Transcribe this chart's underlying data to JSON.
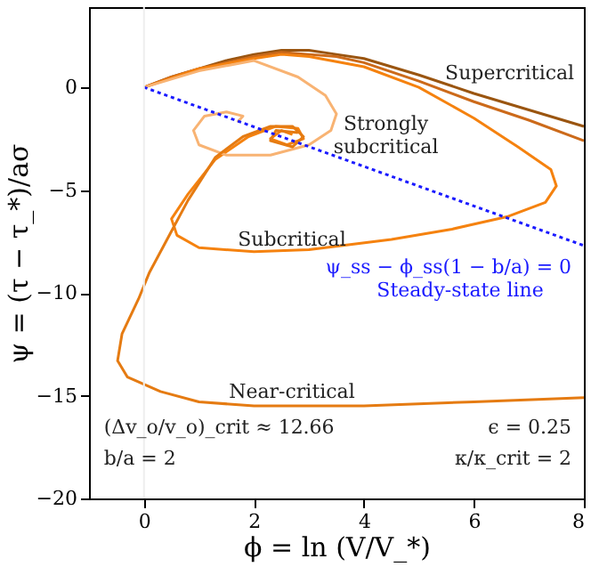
{
  "chart_data": {
    "type": "line",
    "xlabel": "ϕ = ln (V/V_*)",
    "ylabel": "ψ = (τ − τ_*)/aσ",
    "xlim": [
      -1,
      8
    ],
    "ylim": [
      -20,
      3.9
    ],
    "xticks": [
      0,
      2,
      4,
      6,
      8
    ],
    "yticks": [
      0,
      -5,
      -10,
      -15,
      -20
    ],
    "grid": false,
    "series": [
      {
        "color": "#9a5510",
        "x": [
          0,
          0.5,
          1,
          1.5,
          2,
          2.5,
          3,
          3.5,
          4,
          5,
          6,
          7,
          8
        ],
        "values": [
          0,
          0.5,
          0.9,
          1.3,
          1.6,
          1.8,
          1.8,
          1.6,
          1.4,
          0.6,
          -0.3,
          -1.1,
          -1.9
        ]
      },
      {
        "color": "#cc6a1a",
        "x": [
          0,
          0.5,
          1,
          1.5,
          2,
          2.5,
          3,
          3.5,
          4,
          5,
          6,
          7,
          8
        ],
        "values": [
          0,
          0.5,
          0.9,
          1.2,
          1.5,
          1.7,
          1.6,
          1.5,
          1.2,
          0.3,
          -0.7,
          -1.6,
          -2.6
        ]
      },
      {
        "color": "#f5820f",
        "x": [
          0,
          1,
          2,
          2.5,
          3,
          4,
          5,
          6,
          6.8,
          7.4,
          7.5,
          7.3,
          6.6,
          5.6,
          4.5,
          3,
          2,
          1,
          0.6,
          0.5,
          0.8,
          1.3,
          1.9,
          2.4,
          2.8,
          2.9,
          2.6,
          2.3,
          2.5,
          2.7
        ],
        "values": [
          0,
          0.9,
          1.4,
          1.6,
          1.5,
          1.0,
          0.0,
          -1.5,
          -2.9,
          -4.0,
          -4.8,
          -5.6,
          -6.3,
          -6.9,
          -7.4,
          -7.9,
          -8.0,
          -7.8,
          -7.2,
          -6.4,
          -5.2,
          -3.5,
          -2.4,
          -1.9,
          -2.0,
          -2.5,
          -2.8,
          -2.5,
          -2.1,
          -2.3
        ]
      },
      {
        "color": "#f8b373",
        "x": [
          0,
          1,
          2,
          2.8,
          3.3,
          3.5,
          3.4,
          3.0,
          2.3,
          1.5,
          1.0,
          0.9,
          1.1,
          1.5,
          1.8,
          1.7
        ],
        "values": [
          0,
          0.8,
          1.3,
          0.5,
          -0.4,
          -1.3,
          -2.1,
          -2.8,
          -3.3,
          -3.3,
          -2.8,
          -2.1,
          -1.4,
          -1.2,
          -1.4,
          -1.7
        ]
      },
      {
        "color": "#e57b12",
        "x": [
          8,
          6,
          4,
          2,
          1,
          0.3,
          -0.3,
          -0.48,
          -0.4,
          -0.1,
          0.1,
          0.5,
          0.8,
          1.3,
          1.8,
          2.3,
          2.7,
          2.9,
          2.7,
          2.3,
          2.4,
          2.8
        ],
        "values": [
          -15.1,
          -15.3,
          -15.5,
          -15.5,
          -15.3,
          -14.8,
          -14.1,
          -13.3,
          -12,
          -10.3,
          -9.0,
          -7.0,
          -5.5,
          -3.4,
          -2.4,
          -1.9,
          -1.9,
          -2.4,
          -2.9,
          -2.6,
          -2.1,
          -2.2
        ]
      },
      {
        "color": "#1a1aff",
        "line_style": "dotted",
        "x": [
          0,
          8
        ],
        "values": [
          0,
          -7.7
        ]
      }
    ],
    "ref_lines": [
      {
        "axis": "x",
        "value": 0,
        "color": "#eeeeee"
      }
    ],
    "annotations": [
      "Supercritical",
      "Strongly\nsubcritical",
      "Subcritical",
      "Near-critical",
      "ψ_ss − ϕ_ss(1 − b/a) = 0",
      "Steady-state line",
      "(Δv_o/v_o)_crit ≈ 12.66",
      "b/a = 2",
      "ϵ = 0.25",
      "κ/κ_crit = 2"
    ]
  }
}
